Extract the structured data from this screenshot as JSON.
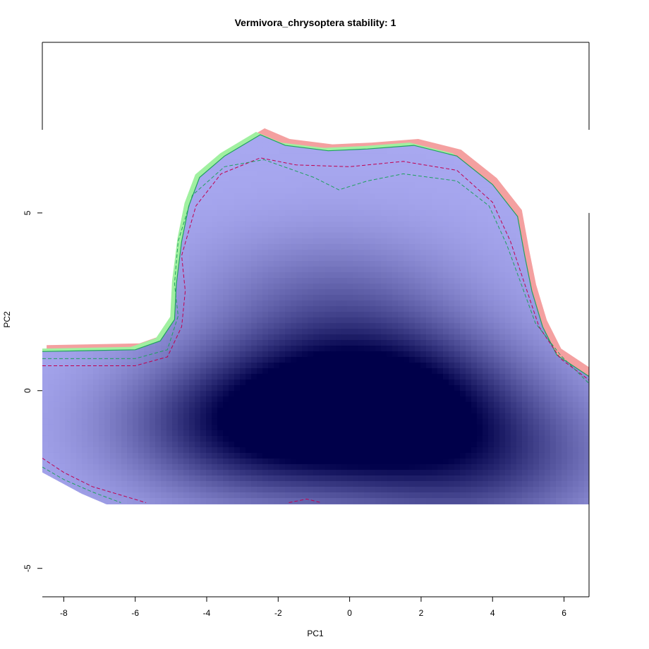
{
  "chart_data": {
    "type": "heatmap",
    "title": "Vermivora_chrysoptera stability: 1",
    "xlabel": "PC1",
    "ylabel": "PC2",
    "xlim": [
      -8.6,
      6.7
    ],
    "ylim": [
      -5.8,
      9.8
    ],
    "x_ticks": [
      -8,
      -6,
      -4,
      -2,
      0,
      2,
      4,
      6
    ],
    "y_ticks": [
      -5,
      0,
      5
    ],
    "grid": false,
    "colors": {
      "density_low": "#a8a8f0",
      "density_high": "#00004a",
      "red_region": "#f4a0a0",
      "green_region": "#a0f0a0",
      "red_contour": "#c00050",
      "green_contour": "#20a060"
    },
    "density_peaks": [
      {
        "x": 0.8,
        "y": -0.2,
        "strength": 1.0
      },
      {
        "x": -2.6,
        "y": -1.0,
        "strength": 0.85
      },
      {
        "x": 3.5,
        "y": -2.0,
        "strength": 0.6
      },
      {
        "x": -0.5,
        "y": 2.5,
        "strength": 0.35
      }
    ],
    "region_clip": {
      "ymin": -3.2,
      "ymax": 7.3
    },
    "region_boundary": [
      [
        -8.6,
        1.1
      ],
      [
        -6.0,
        1.15
      ],
      [
        -5.3,
        1.4
      ],
      [
        -4.9,
        2.0
      ],
      [
        -4.85,
        3.0
      ],
      [
        -4.7,
        4.2
      ],
      [
        -4.5,
        5.2
      ],
      [
        -4.2,
        6.0
      ],
      [
        -3.5,
        6.6
      ],
      [
        -2.5,
        7.2
      ],
      [
        -1.8,
        6.9
      ],
      [
        -0.6,
        6.75
      ],
      [
        0.5,
        6.8
      ],
      [
        1.8,
        6.9
      ],
      [
        3.0,
        6.6
      ],
      [
        4.0,
        5.8
      ],
      [
        4.7,
        4.9
      ],
      [
        4.9,
        3.8
      ],
      [
        5.1,
        2.8
      ],
      [
        5.4,
        1.8
      ],
      [
        5.8,
        1.0
      ],
      [
        6.7,
        0.4
      ],
      [
        6.7,
        -3.2
      ],
      [
        -6.8,
        -3.2
      ],
      [
        -7.5,
        -2.9
      ],
      [
        -8.6,
        -2.3
      ]
    ],
    "red_contour": [
      [
        -8.6,
        0.7
      ],
      [
        -6.0,
        0.7
      ],
      [
        -5.1,
        0.95
      ],
      [
        -4.7,
        1.8
      ],
      [
        -4.6,
        2.8
      ],
      [
        -4.7,
        3.8
      ],
      [
        -4.3,
        5.2
      ],
      [
        -3.6,
        6.1
      ],
      [
        -2.5,
        6.55
      ],
      [
        -1.5,
        6.35
      ],
      [
        0.0,
        6.3
      ],
      [
        1.5,
        6.45
      ],
      [
        3.0,
        6.2
      ],
      [
        4.0,
        5.3
      ],
      [
        4.5,
        4.2
      ],
      [
        4.9,
        3.0
      ],
      [
        5.3,
        1.8
      ],
      [
        5.9,
        0.9
      ],
      [
        6.7,
        0.3
      ]
    ],
    "green_contour": [
      [
        -8.6,
        0.9
      ],
      [
        -6.0,
        0.9
      ],
      [
        -5.1,
        1.15
      ],
      [
        -4.8,
        2.1
      ],
      [
        -4.9,
        3.0
      ],
      [
        -4.8,
        4.2
      ],
      [
        -4.4,
        5.5
      ],
      [
        -3.5,
        6.3
      ],
      [
        -2.4,
        6.5
      ],
      [
        -1.0,
        6.0
      ],
      [
        -0.3,
        5.65
      ],
      [
        0.5,
        5.9
      ],
      [
        1.5,
        6.1
      ],
      [
        3.0,
        5.9
      ],
      [
        3.9,
        5.2
      ],
      [
        4.4,
        4.1
      ],
      [
        4.8,
        3.0
      ],
      [
        5.2,
        1.9
      ],
      [
        5.9,
        1.0
      ],
      [
        6.7,
        0.2
      ]
    ],
    "red_contour_lower": [
      [
        -8.6,
        -1.9
      ],
      [
        -8.0,
        -2.3
      ],
      [
        -7.2,
        -2.7
      ],
      [
        -6.2,
        -3.0
      ],
      [
        -5.7,
        -3.15
      ]
    ],
    "red_contour_lower2": [
      [
        -1.7,
        -3.15
      ],
      [
        -1.2,
        -3.05
      ],
      [
        -0.8,
        -3.15
      ]
    ],
    "green_contour_lower": [
      [
        -8.6,
        -2.15
      ],
      [
        -8.0,
        -2.5
      ],
      [
        -7.2,
        -2.85
      ],
      [
        -6.4,
        -3.15
      ]
    ]
  }
}
